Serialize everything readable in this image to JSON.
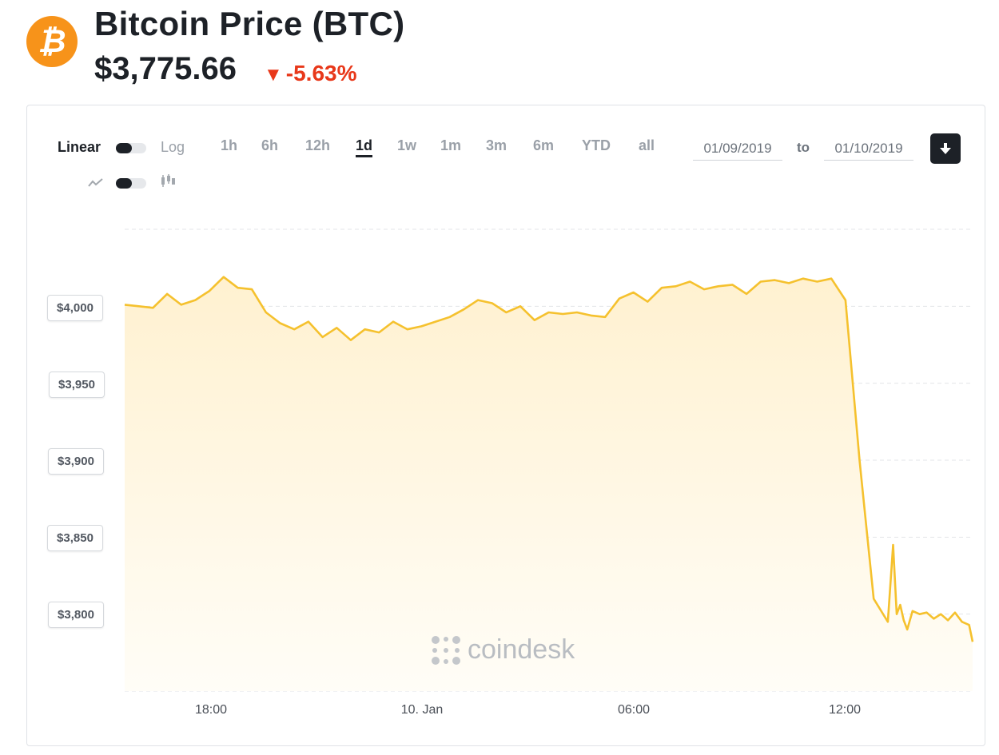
{
  "header": {
    "logo_symbol": "₿",
    "title": "Bitcoin Price",
    "ticker": "(BTC)",
    "price": "$3,775.66",
    "change_arrow": "▼",
    "change": "-5.63%",
    "change_color": "#e8381a",
    "brand_color": "#f7931a"
  },
  "controls": {
    "scale_linear": "Linear",
    "scale_log": "Log",
    "line_icon": "line-chart-icon",
    "candle_icon": "candlestick-icon",
    "ranges": [
      "1h",
      "6h",
      "12h",
      "1d",
      "1w",
      "1m",
      "3m",
      "6m",
      "YTD",
      "all"
    ],
    "active_range": "1d",
    "date_from": "01/09/2019",
    "date_to_label": "to",
    "date_to": "01/10/2019",
    "download_icon": "download-icon"
  },
  "watermark": "coindesk",
  "chart_data": {
    "type": "area",
    "line_color": "#f5c12e",
    "fill_color": "#fff5dc",
    "y_tick_labels": [
      "$4,000",
      "$3,950",
      "$3,900",
      "$3,850",
      "$3,800"
    ],
    "y_ticks": [
      4000,
      3950,
      3900,
      3850,
      3800
    ],
    "ylim": [
      3750,
      4050
    ],
    "x_tick_labels": [
      "18:00",
      "10. Jan",
      "06:00",
      "12:00"
    ],
    "x_ticks": [
      18,
      24,
      30,
      36
    ],
    "xlim": [
      15.6,
      39.6
    ],
    "grid": true,
    "x": [
      15.6,
      16.0,
      16.4,
      16.8,
      17.2,
      17.6,
      18.0,
      18.4,
      18.8,
      19.2,
      19.6,
      20.0,
      20.4,
      20.8,
      21.2,
      21.6,
      22.0,
      22.4,
      22.8,
      23.2,
      23.6,
      24.0,
      24.4,
      24.8,
      25.2,
      25.6,
      26.0,
      26.4,
      26.8,
      27.2,
      27.6,
      28.0,
      28.4,
      28.8,
      29.2,
      29.6,
      30.0,
      30.4,
      30.8,
      31.2,
      31.6,
      32.0,
      32.4,
      32.8,
      33.2,
      33.6,
      34.0,
      34.4,
      34.8,
      35.2,
      35.6,
      36.0,
      36.4,
      36.8,
      37.2,
      37.35,
      37.45,
      37.55,
      37.65,
      37.75,
      37.9,
      38.1,
      38.3,
      38.5,
      38.7,
      38.9,
      39.1,
      39.3,
      39.5,
      39.6
    ],
    "y": [
      4001,
      4000,
      3999,
      4008,
      4001,
      4004,
      4010,
      4019,
      4012,
      4011,
      3996,
      3989,
      3985,
      3990,
      3980,
      3986,
      3978,
      3985,
      3983,
      3990,
      3985,
      3987,
      3990,
      3993,
      3998,
      4004,
      4002,
      3996,
      4000,
      3991,
      3996,
      3995,
      3996,
      3994,
      3993,
      4005,
      4009,
      4003,
      4012,
      4013,
      4016,
      4011,
      4013,
      4014,
      4008,
      4016,
      4017,
      4015,
      4018,
      4016,
      4018,
      4004,
      3900,
      3810,
      3795,
      3845,
      3800,
      3806,
      3796,
      3790,
      3802,
      3800,
      3801,
      3797,
      3800,
      3796,
      3801,
      3795,
      3793,
      3782
    ]
  }
}
